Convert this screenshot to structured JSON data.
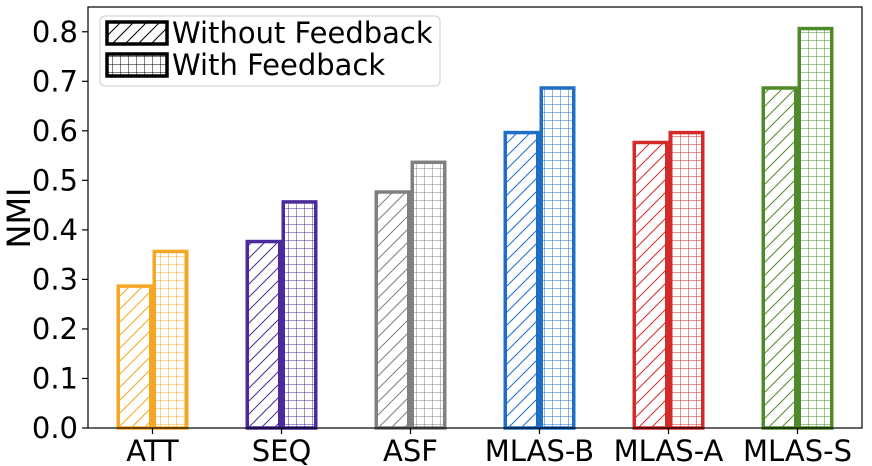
{
  "chart_data": {
    "type": "bar",
    "title": "",
    "xlabel": "",
    "ylabel": "NMI",
    "ylim": [
      0,
      0.85
    ],
    "yticks": [
      "0.0",
      "0.1",
      "0.2",
      "0.3",
      "0.4",
      "0.5",
      "0.6",
      "0.7",
      "0.8"
    ],
    "categories": [
      "ATT",
      "SEQ",
      "ASF",
      "MLAS-B",
      "MLAS-A",
      "MLAS-S"
    ],
    "category_colors": [
      "#f5a623",
      "#4b2a9c",
      "#808080",
      "#1f6fc9",
      "#d42a2a",
      "#4f8a2a"
    ],
    "series": [
      {
        "name": "Without Feedback",
        "pattern": "diagonal-hatch",
        "values": [
          0.29,
          0.38,
          0.48,
          0.6,
          0.58,
          0.69
        ]
      },
      {
        "name": "With Feedback",
        "pattern": "grid-hatch",
        "values": [
          0.36,
          0.46,
          0.54,
          0.69,
          0.6,
          0.81
        ]
      }
    ],
    "legend": {
      "position": "top-left",
      "entries": [
        "Without Feedback",
        "With Feedback"
      ]
    },
    "grid": false
  }
}
